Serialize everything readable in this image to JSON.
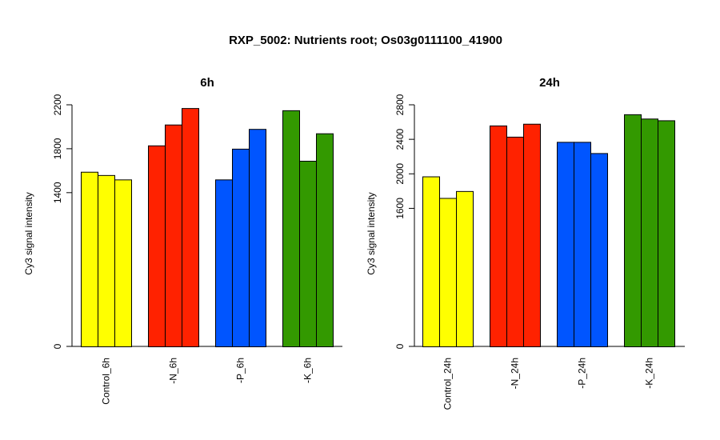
{
  "chart_data": {
    "title": "RXP_5002: Nutrients root; Os03g0111100_41900",
    "type": "bar",
    "panels": [
      {
        "title": "6h",
        "ylabel": "Cy3 signal intensity",
        "ylim": [
          0,
          2200
        ],
        "yticks": [
          0,
          1400,
          1800,
          2200
        ],
        "groups": [
          {
            "label": "Control_6h",
            "color": "#ffff00",
            "values": [
              1590,
              1560,
              1520
            ]
          },
          {
            "label": "-N_6h",
            "color": "#ff2200",
            "values": [
              1830,
              2020,
              2170
            ]
          },
          {
            "label": "-P_6h",
            "color": "#0055ff",
            "values": [
              1520,
              1800,
              1980
            ]
          },
          {
            "label": "-K_6h",
            "color": "#339900",
            "values": [
              2150,
              1690,
              1940
            ]
          }
        ]
      },
      {
        "title": "24h",
        "ylabel": "Cy3 signal intensity",
        "ylim": [
          0,
          2800
        ],
        "yticks": [
          0,
          1600,
          2000,
          2400,
          2800
        ],
        "groups": [
          {
            "label": "Control_24h",
            "color": "#ffff00",
            "values": [
              1970,
              1720,
              1800
            ]
          },
          {
            "label": "-N_24h",
            "color": "#ff2200",
            "values": [
              2560,
              2430,
              2580
            ]
          },
          {
            "label": "-P_24h",
            "color": "#0055ff",
            "values": [
              2370,
              2370,
              2240
            ]
          },
          {
            "label": "-K_24h",
            "color": "#339900",
            "values": [
              2690,
              2640,
              2620
            ]
          }
        ]
      }
    ]
  }
}
